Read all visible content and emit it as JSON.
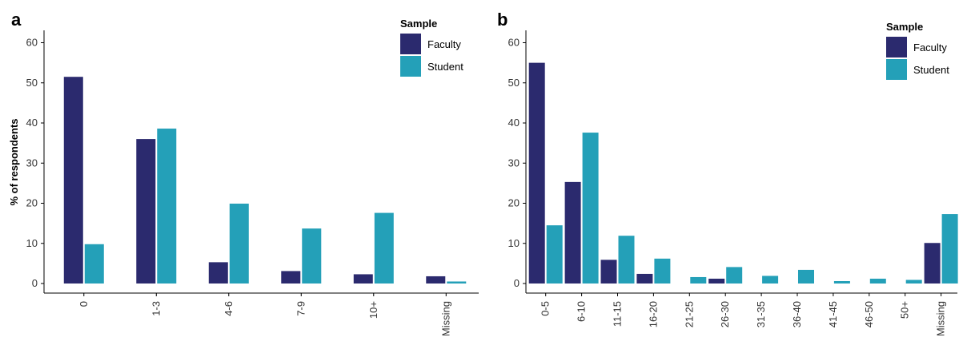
{
  "colors": {
    "faculty": "#2b2a6e",
    "student": "#24a0b8",
    "axis": "#000000"
  },
  "chart_data": [
    {
      "type": "bar",
      "panel": "a",
      "ylabel": "% of respondents",
      "ylim": [
        0,
        62
      ],
      "yticks": [
        0,
        10,
        20,
        30,
        40,
        50,
        60
      ],
      "categories": [
        "0",
        "1-3",
        "4-6",
        "7-9",
        "10+",
        "Missing"
      ],
      "legend": {
        "title": "Sample",
        "placement": "top-right"
      },
      "series": [
        {
          "name": "Faculty",
          "values": [
            51.5,
            36,
            5.3,
            3.1,
            2.3,
            1.8
          ]
        },
        {
          "name": "Student",
          "values": [
            9.8,
            38.6,
            19.9,
            13.7,
            17.6,
            0.5
          ]
        }
      ]
    },
    {
      "type": "bar",
      "panel": "b",
      "ylabel": "",
      "ylim": [
        0,
        62
      ],
      "yticks": [
        0,
        10,
        20,
        30,
        40,
        50,
        60
      ],
      "categories": [
        "0-5",
        "6-10",
        "11-15",
        "16-20",
        "21-25",
        "26-30",
        "31-35",
        "36-40",
        "41-45",
        "46-50",
        "50+",
        "Missing"
      ],
      "legend": {
        "title": "Sample",
        "placement": "top-right"
      },
      "series": [
        {
          "name": "Faculty",
          "values": [
            55,
            25.3,
            5.9,
            2.4,
            0,
            1.2,
            0,
            0,
            0,
            0,
            0,
            10.1
          ]
        },
        {
          "name": "Student",
          "values": [
            14.5,
            37.6,
            11.9,
            6.2,
            1.6,
            4.1,
            1.9,
            3.4,
            0.6,
            1.2,
            0.9,
            17.3
          ]
        }
      ]
    }
  ]
}
